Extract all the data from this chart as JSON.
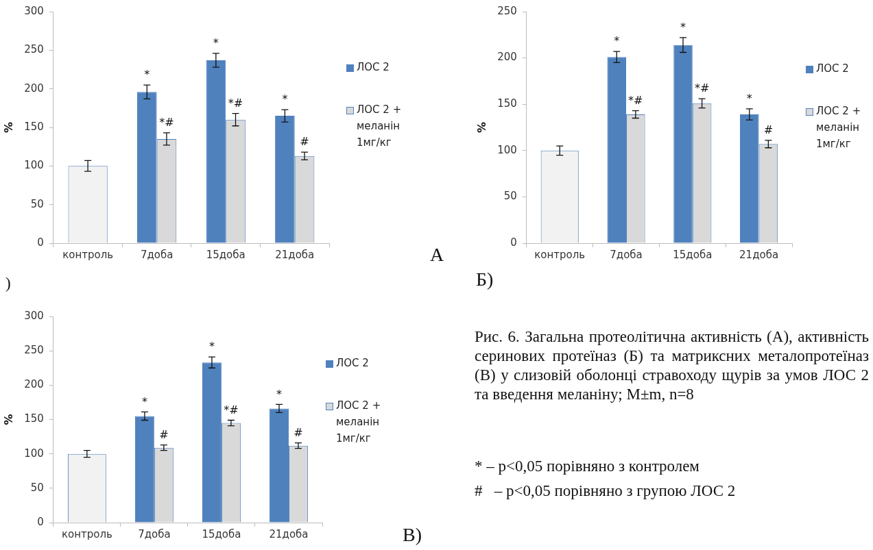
{
  "chart_data": [
    {
      "type": "bar",
      "ylabel": "%",
      "categories": [
        "контроль",
        "7доба",
        "15доба",
        "21доба"
      ],
      "ylim": [
        0,
        300
      ],
      "yticks": [
        0,
        50,
        100,
        150,
        200,
        250,
        300
      ],
      "grid": false,
      "legend": "right",
      "series": [
        {
          "color": "#f2f2f2",
          "values": [
            100,
            null,
            null,
            null
          ],
          "errors": [
            7,
            null,
            null,
            null
          ]
        },
        {
          "name": "ЛОС 2",
          "color": "#4f81bd",
          "values": [
            null,
            196,
            237,
            165
          ],
          "errors": [
            null,
            9,
            9,
            8
          ],
          "value_labels": [
            null,
            "*",
            "*",
            "*"
          ]
        },
        {
          "name": "ЛОС 2 + меланін 1мг/кг",
          "color": "#d9d9d9",
          "values": [
            null,
            135,
            160,
            113
          ],
          "errors": [
            null,
            8,
            8,
            5
          ],
          "value_labels": [
            null,
            "*#",
            "*#",
            "#"
          ]
        }
      ],
      "annotations": [
        "А",
        ")"
      ]
    },
    {
      "type": "bar",
      "ylabel": "%",
      "categories": [
        "контроль",
        "7доба",
        "15доба",
        "21доба"
      ],
      "ylim": [
        0,
        250
      ],
      "yticks": [
        0,
        50,
        100,
        150,
        200,
        250
      ],
      "grid": false,
      "legend": "right",
      "series": [
        {
          "color": "#f2f2f2",
          "values": [
            100,
            null,
            null,
            null
          ],
          "errors": [
            5,
            null,
            null,
            null
          ]
        },
        {
          "name": "ЛОС 2",
          "color": "#4f81bd",
          "values": [
            null,
            201,
            214,
            139
          ],
          "errors": [
            null,
            6,
            8,
            6
          ],
          "value_labels": [
            null,
            "*",
            "*",
            "*"
          ]
        },
        {
          "name": "ЛОС 2 + меланін 1мг/кг",
          "color": "#d9d9d9",
          "values": [
            null,
            139,
            151,
            107
          ],
          "errors": [
            null,
            4,
            5,
            4
          ],
          "value_labels": [
            null,
            "*#",
            "*#",
            "#"
          ]
        }
      ],
      "annotations": [
        "Б)"
      ]
    },
    {
      "type": "bar",
      "ylabel": "%",
      "categories": [
        "контроль",
        "7доба",
        "15доба",
        "21доба"
      ],
      "ylim": [
        0,
        300
      ],
      "yticks": [
        0,
        50,
        100,
        150,
        200,
        250,
        300
      ],
      "grid": false,
      "legend": "right",
      "series": [
        {
          "color": "#f2f2f2",
          "values": [
            100,
            null,
            null,
            null
          ],
          "errors": [
            5,
            null,
            null,
            null
          ]
        },
        {
          "name": "ЛОС 2",
          "color": "#4f81bd",
          "values": [
            null,
            155,
            233,
            166
          ],
          "errors": [
            null,
            6,
            8,
            6
          ],
          "value_labels": [
            null,
            "*",
            "*",
            "*"
          ]
        },
        {
          "name": "ЛОС 2 + меланін 1мг/кг",
          "color": "#d9d9d9",
          "values": [
            null,
            109,
            145,
            112
          ],
          "errors": [
            null,
            4,
            4,
            4
          ],
          "value_labels": [
            null,
            "#",
            "*#",
            "#"
          ]
        }
      ],
      "annotations": [
        "В)",
        "Рис. 6. Загальна протеолітична активність (А), активність серинових протеїназ (Б) та матриксних металопротеїназ (В) у слизовій оболонці стравоходу щурів за умов ЛОС 2 та введення меланіну; M±m, n=8",
        "* – p<0,05 порівняно з контролем",
        "#   – p<0,05 порівняно з групою ЛОС 2"
      ]
    }
  ]
}
